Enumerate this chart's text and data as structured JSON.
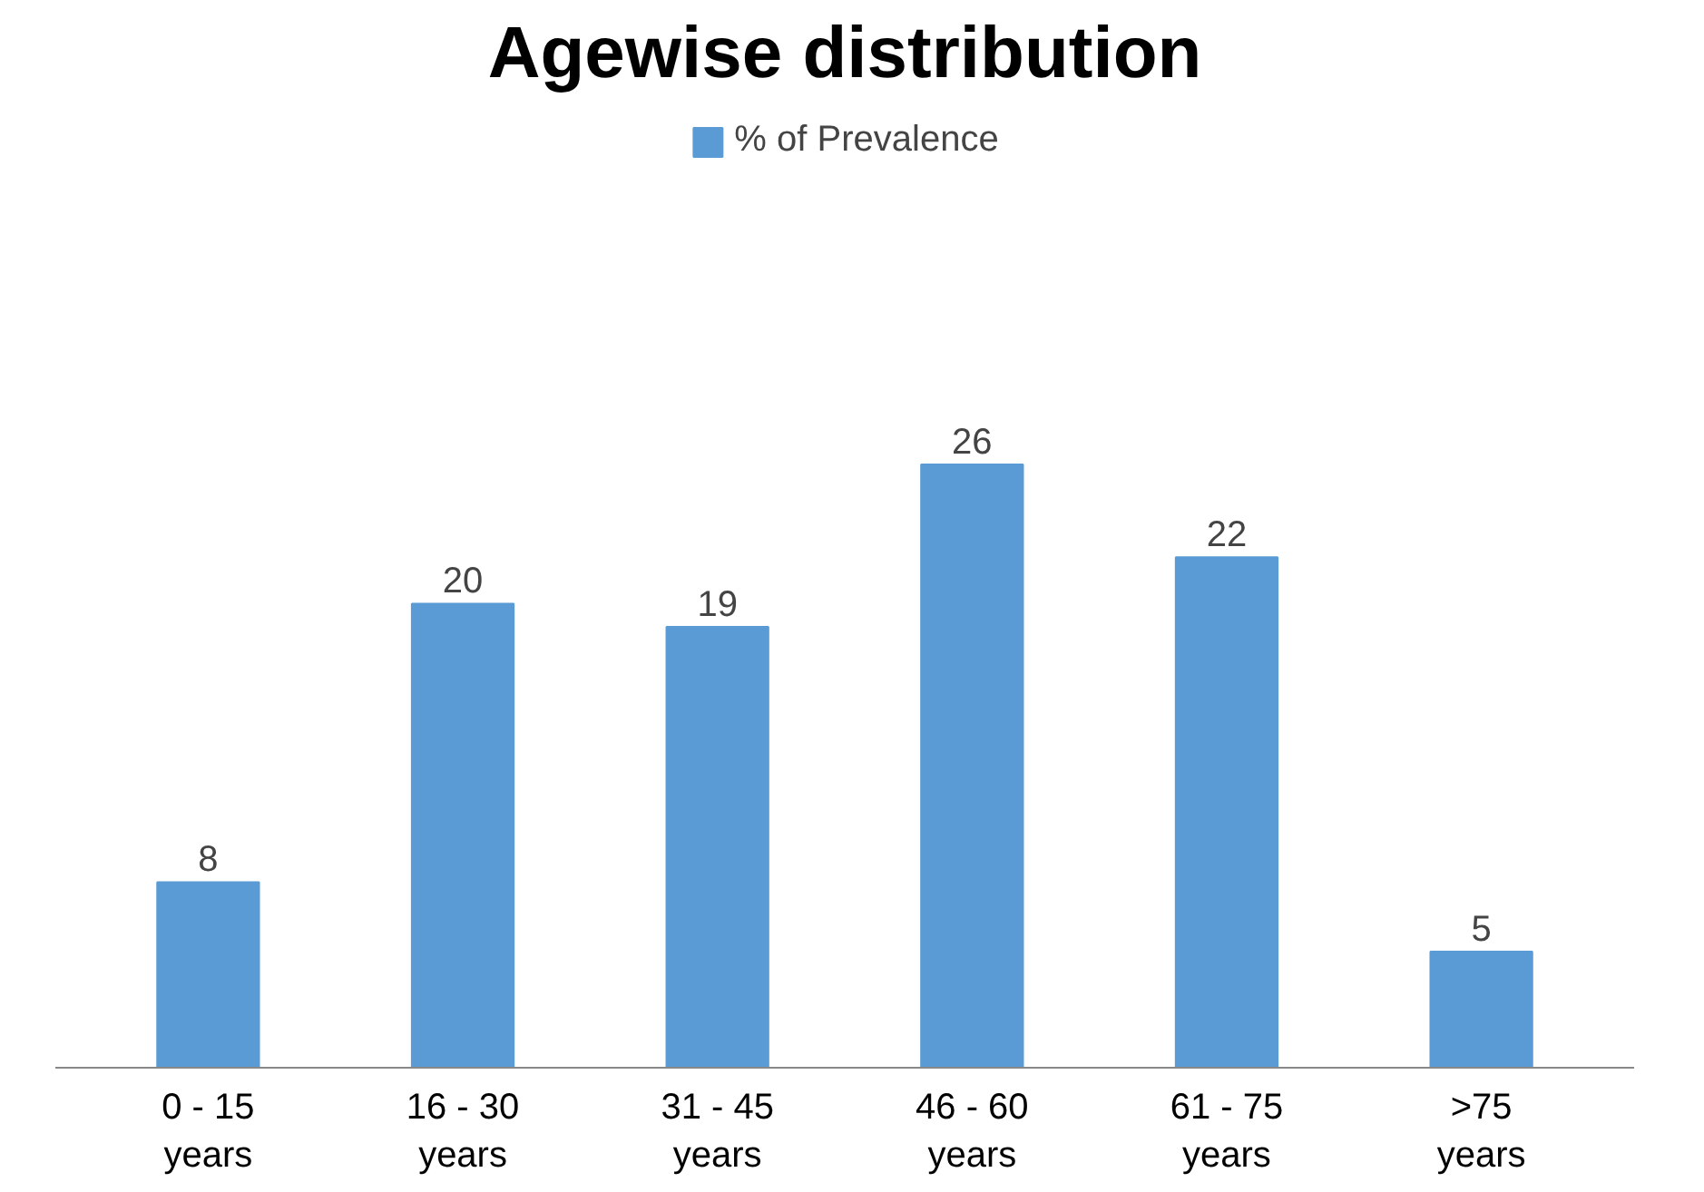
{
  "chart_data": {
    "type": "bar",
    "title": "Agewise distribution",
    "categories": [
      "0 - 15 years",
      "16 - 30 years",
      "31 - 45 years",
      "46 - 60 years",
      "61 - 75 years",
      ">75 years"
    ],
    "series": [
      {
        "name": "% of Prevalence",
        "color": "#5b9bd5",
        "values": [
          8,
          20,
          19,
          26,
          22,
          5
        ]
      }
    ],
    "data_labels": true,
    "legend": "top",
    "grid": false
  }
}
